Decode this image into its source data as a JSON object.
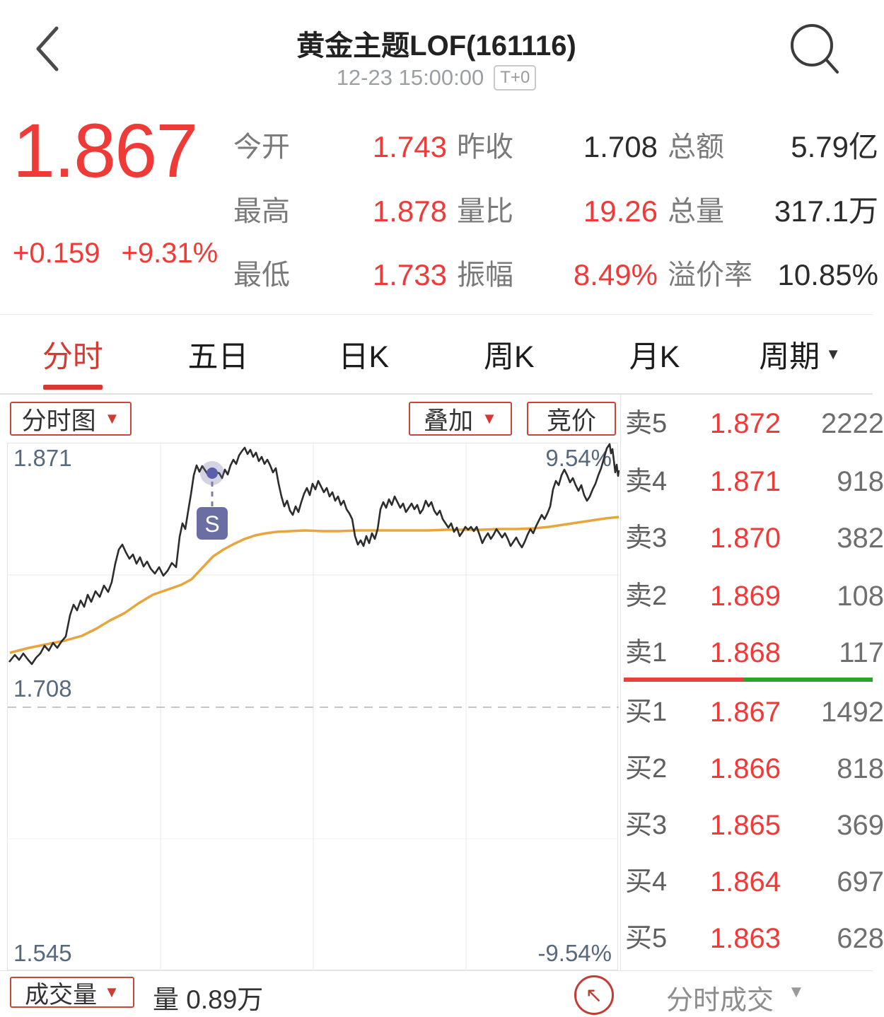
{
  "header": {
    "title": "黄金主题LOF(161116)",
    "timestamp": "12-23 15:00:00",
    "badge": "T+0"
  },
  "quote": {
    "price": "1.867",
    "change": "+0.159",
    "change_pct": "+9.31%",
    "stats": [
      {
        "label": "今开",
        "value": "1.743",
        "color": "red"
      },
      {
        "label": "昨收",
        "value": "1.708",
        "color": "black"
      },
      {
        "label": "总额",
        "value": "5.79亿",
        "color": "black"
      },
      {
        "label": "最高",
        "value": "1.878",
        "color": "red"
      },
      {
        "label": "量比",
        "value": "19.26",
        "color": "red"
      },
      {
        "label": "总量",
        "value": "317.1万",
        "color": "black"
      },
      {
        "label": "最低",
        "value": "1.733",
        "color": "red"
      },
      {
        "label": "振幅",
        "value": "8.49%",
        "color": "red"
      },
      {
        "label": "溢价率",
        "value": "10.85%",
        "color": "black"
      }
    ]
  },
  "tabs": [
    {
      "label": "分时"
    },
    {
      "label": "五日"
    },
    {
      "label": "日K"
    },
    {
      "label": "周K"
    },
    {
      "label": "月K"
    },
    {
      "label": "周期",
      "caret": "▼"
    }
  ],
  "controls": {
    "chart_type": "分时图",
    "overlay": "叠加",
    "auction": "竞价",
    "caret": "▼"
  },
  "chart_data": {
    "type": "line",
    "title": "分时图",
    "y_axis_labels": {
      "top": "1.871",
      "middle_prev_close": "1.708",
      "bottom": "1.545"
    },
    "right_labels": {
      "top": "9.54%",
      "bottom": "-9.54%"
    },
    "prev_close": 1.708,
    "day_high": 1.878,
    "day_low": 1.733,
    "marker": {
      "label": "S",
      "x": 289,
      "y": 42
    },
    "series": [
      {
        "name": "average",
        "points": [
          [
            3,
            296
          ],
          [
            30,
            289
          ],
          [
            55,
            284
          ],
          [
            80,
            279
          ],
          [
            105,
            272
          ],
          [
            125,
            262
          ],
          [
            145,
            250
          ],
          [
            165,
            240
          ],
          [
            185,
            226
          ],
          [
            205,
            214
          ],
          [
            225,
            207
          ],
          [
            245,
            200
          ],
          [
            260,
            192
          ],
          [
            275,
            176
          ],
          [
            290,
            160
          ],
          [
            305,
            150
          ],
          [
            320,
            142
          ],
          [
            335,
            135
          ],
          [
            350,
            130
          ],
          [
            365,
            127
          ],
          [
            380,
            125
          ],
          [
            400,
            124
          ],
          [
            420,
            123
          ],
          [
            445,
            124
          ],
          [
            470,
            124
          ],
          [
            495,
            123
          ],
          [
            520,
            123
          ],
          [
            545,
            123
          ],
          [
            570,
            123
          ],
          [
            595,
            123
          ],
          [
            620,
            122
          ],
          [
            645,
            122
          ],
          [
            670,
            122
          ],
          [
            695,
            121
          ],
          [
            720,
            121
          ],
          [
            745,
            120
          ],
          [
            765,
            118
          ],
          [
            785,
            115
          ],
          [
            805,
            112
          ],
          [
            825,
            109
          ],
          [
            845,
            106
          ],
          [
            864,
            104
          ]
        ]
      },
      {
        "name": "price",
        "points": [
          [
            2,
            309
          ],
          [
            10,
            299
          ],
          [
            16,
            306
          ],
          [
            22,
            297
          ],
          [
            28,
            305
          ],
          [
            34,
            312
          ],
          [
            40,
            303
          ],
          [
            46,
            297
          ],
          [
            52,
            286
          ],
          [
            58,
            293
          ],
          [
            64,
            282
          ],
          [
            70,
            289
          ],
          [
            76,
            280
          ],
          [
            82,
            273
          ],
          [
            88,
            243
          ],
          [
            93,
            228
          ],
          [
            98,
            236
          ],
          [
            103,
            222
          ],
          [
            108,
            231
          ],
          [
            113,
            214
          ],
          [
            118,
            224
          ],
          [
            124,
            209
          ],
          [
            130,
            217
          ],
          [
            136,
            201
          ],
          [
            142,
            210
          ],
          [
            147,
            196
          ],
          [
            152,
            170
          ],
          [
            157,
            150
          ],
          [
            162,
            143
          ],
          [
            167,
            154
          ],
          [
            172,
            163
          ],
          [
            177,
            157
          ],
          [
            182,
            170
          ],
          [
            187,
            161
          ],
          [
            192,
            174
          ],
          [
            197,
            167
          ],
          [
            202,
            177
          ],
          [
            208,
            184
          ],
          [
            214,
            175
          ],
          [
            220,
            187
          ],
          [
            226,
            180
          ],
          [
            232,
            169
          ],
          [
            238,
            175
          ],
          [
            243,
            132
          ],
          [
            247,
            113
          ],
          [
            251,
            121
          ],
          [
            255,
            96
          ],
          [
            259,
            72
          ],
          [
            263,
            45
          ],
          [
            267,
            31
          ],
          [
            271,
            40
          ],
          [
            275,
            32
          ],
          [
            279,
            38
          ],
          [
            283,
            44
          ],
          [
            287,
            39
          ],
          [
            291,
            47
          ],
          [
            295,
            41
          ],
          [
            299,
            42
          ],
          [
            303,
            49
          ],
          [
            307,
            37
          ],
          [
            311,
            44
          ],
          [
            315,
            31
          ],
          [
            319,
            23
          ],
          [
            323,
            29
          ],
          [
            327,
            17
          ],
          [
            331,
            11
          ],
          [
            335,
            6
          ],
          [
            339,
            15
          ],
          [
            343,
            9
          ],
          [
            347,
            19
          ],
          [
            351,
            13
          ],
          [
            355,
            25
          ],
          [
            359,
            19
          ],
          [
            363,
            29
          ],
          [
            367,
            23
          ],
          [
            371,
            31
          ],
          [
            375,
            41
          ],
          [
            379,
            35
          ],
          [
            383,
            57
          ],
          [
            387,
            75
          ],
          [
            391,
            89
          ],
          [
            395,
            81
          ],
          [
            399,
            95
          ],
          [
            403,
            101
          ],
          [
            407,
            89
          ],
          [
            411,
            97
          ],
          [
            415,
            83
          ],
          [
            419,
            71
          ],
          [
            423,
            63
          ],
          [
            427,
            73
          ],
          [
            431,
            57
          ],
          [
            435,
            65
          ],
          [
            439,
            53
          ],
          [
            443,
            61
          ],
          [
            447,
            69
          ],
          [
            451,
            63
          ],
          [
            455,
            75
          ],
          [
            459,
            69
          ],
          [
            463,
            81
          ],
          [
            467,
            75
          ],
          [
            471,
            87
          ],
          [
            475,
            81
          ],
          [
            479,
            93
          ],
          [
            483,
            99
          ],
          [
            487,
            107
          ],
          [
            491,
            131
          ],
          [
            495,
            143
          ],
          [
            499,
            137
          ],
          [
            503,
            145
          ],
          [
            507,
            131
          ],
          [
            511,
            141
          ],
          [
            515,
            127
          ],
          [
            519,
            135
          ],
          [
            523,
            121
          ],
          [
            527,
            93
          ],
          [
            531,
            83
          ],
          [
            535,
            91
          ],
          [
            539,
            79
          ],
          [
            543,
            87
          ],
          [
            547,
            75
          ],
          [
            551,
            83
          ],
          [
            555,
            91
          ],
          [
            559,
            85
          ],
          [
            563,
            97
          ],
          [
            567,
            91
          ],
          [
            571,
            85
          ],
          [
            575,
            93
          ],
          [
            579,
            87
          ],
          [
            583,
            99
          ],
          [
            587,
            93
          ],
          [
            591,
            81
          ],
          [
            595,
            89
          ],
          [
            599,
            83
          ],
          [
            603,
            95
          ],
          [
            607,
            101
          ],
          [
            611,
            95
          ],
          [
            615,
            107
          ],
          [
            619,
            113
          ],
          [
            623,
            119
          ],
          [
            627,
            113
          ],
          [
            631,
            125
          ],
          [
            635,
            119
          ],
          [
            639,
            131
          ],
          [
            643,
            125
          ],
          [
            647,
            118
          ],
          [
            651,
            122
          ],
          [
            655,
            118
          ],
          [
            659,
            124
          ],
          [
            663,
            118
          ],
          [
            667,
            129
          ],
          [
            671,
            141
          ],
          [
            675,
            133
          ],
          [
            679,
            127
          ],
          [
            683,
            135
          ],
          [
            687,
            129
          ],
          [
            691,
            121
          ],
          [
            695,
            127
          ],
          [
            699,
            133
          ],
          [
            703,
            127
          ],
          [
            707,
            135
          ],
          [
            711,
            145
          ],
          [
            715,
            139
          ],
          [
            719,
            133
          ],
          [
            723,
            141
          ],
          [
            727,
            147
          ],
          [
            731,
            139
          ],
          [
            735,
            129
          ],
          [
            739,
            121
          ],
          [
            743,
            127
          ],
          [
            747,
            117
          ],
          [
            751,
            109
          ],
          [
            755,
            101
          ],
          [
            759,
            107
          ],
          [
            763,
            99
          ],
          [
            767,
            89
          ],
          [
            771,
            65
          ],
          [
            775,
            53
          ],
          [
            779,
            59
          ],
          [
            783,
            45
          ],
          [
            787,
            37
          ],
          [
            791,
            45
          ],
          [
            795,
            55
          ],
          [
            799,
            49
          ],
          [
            803,
            59
          ],
          [
            807,
            67
          ],
          [
            811,
            59
          ],
          [
            815,
            73
          ],
          [
            819,
            81
          ],
          [
            823,
            75
          ],
          [
            827,
            65
          ],
          [
            831,
            57
          ],
          [
            835,
            45
          ],
          [
            839,
            35
          ],
          [
            843,
            21
          ],
          [
            847,
            7
          ],
          [
            851,
            1
          ],
          [
            853,
            14
          ],
          [
            855,
            8
          ],
          [
            857,
            24
          ],
          [
            859,
            41
          ],
          [
            861,
            30
          ],
          [
            863,
            46
          ],
          [
            864,
            38
          ]
        ]
      }
    ]
  },
  "order_book": {
    "sells": [
      {
        "label": "卖5",
        "price": "1.872",
        "volume": "2222"
      },
      {
        "label": "卖4",
        "price": "1.871",
        "volume": "918"
      },
      {
        "label": "卖3",
        "price": "1.870",
        "volume": "382"
      },
      {
        "label": "卖2",
        "price": "1.869",
        "volume": "108"
      },
      {
        "label": "卖1",
        "price": "1.868",
        "volume": "117"
      }
    ],
    "buys": [
      {
        "label": "买1",
        "price": "1.867",
        "volume": "1492"
      },
      {
        "label": "买2",
        "price": "1.866",
        "volume": "818"
      },
      {
        "label": "买3",
        "price": "1.865",
        "volume": "369"
      },
      {
        "label": "买4",
        "price": "1.864",
        "volume": "697"
      },
      {
        "label": "买5",
        "price": "1.863",
        "volume": "628"
      }
    ],
    "ratio": {
      "red_pct": "48%"
    }
  },
  "bottom_bar": {
    "indicator": "成交量",
    "indicator_caret": "▼",
    "volume_text": "量 0.89万",
    "expand_icon": "↖",
    "panel_title": "分时成交",
    "panel_caret": "▼"
  }
}
